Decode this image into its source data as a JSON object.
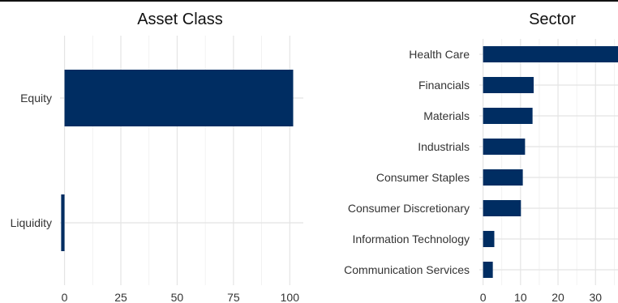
{
  "bar_color": "#002d62",
  "chart_data": [
    {
      "type": "bar",
      "orientation": "horizontal",
      "title": "Asset Class",
      "categories": [
        "Equity",
        "Liquidity"
      ],
      "values": [
        101.5,
        -1.5
      ],
      "xlim": [
        -2,
        106
      ],
      "xticks": [
        0,
        25,
        50,
        75,
        100
      ],
      "grid": true,
      "legend": "none"
    },
    {
      "type": "bar",
      "orientation": "horizontal",
      "title": "Sector",
      "categories": [
        "Health Care",
        "Financials",
        "Materials",
        "Industrials",
        "Consumer Staples",
        "Consumer Discretionary",
        "Information Technology",
        "Communication Services"
      ],
      "values": [
        36.5,
        13.5,
        13.2,
        11.2,
        10.6,
        10.1,
        3.0,
        2.6
      ],
      "xlim": [
        -1,
        36
      ],
      "xticks": [
        0,
        10,
        20,
        30
      ],
      "grid": true,
      "legend": "none"
    }
  ]
}
